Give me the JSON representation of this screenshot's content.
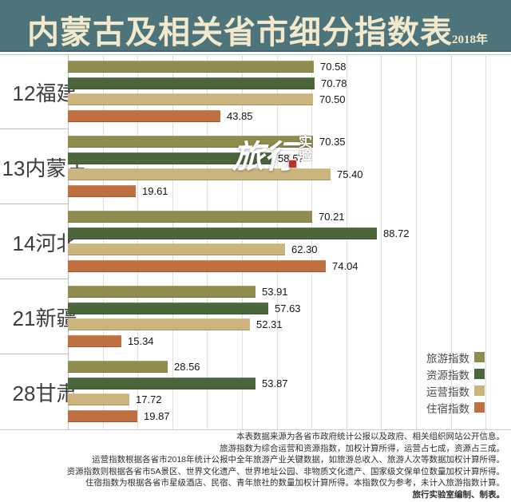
{
  "banner": {
    "title": "内蒙古及相关省市细分指数表",
    "year": "2018年",
    "bg_color": "#4D747B",
    "text_color": "#F2E9CC"
  },
  "chart_data": {
    "type": "bar",
    "orientation": "horizontal",
    "title": "内蒙古及相关省市细分指数表",
    "subtitle": "2018年",
    "categories": [
      "12福建",
      "13内蒙古",
      "14河北",
      "21新疆",
      "28甘肃"
    ],
    "series": [
      {
        "name": "旅游指数",
        "color": "#8F8C4F",
        "values": [
          70.58,
          70.35,
          70.21,
          53.91,
          28.56
        ]
      },
      {
        "name": "资源指数",
        "color": "#4C663C",
        "values": [
          70.78,
          58.57,
          88.72,
          57.63,
          53.87
        ]
      },
      {
        "name": "运营指数",
        "color": "#CBB57D",
        "values": [
          70.5,
          75.4,
          62.3,
          52.31,
          17.72
        ]
      },
      {
        "name": "住宿指数",
        "color": "#C06F40",
        "values": [
          43.85,
          19.61,
          74.04,
          15.34,
          19.87
        ]
      }
    ],
    "value_labels": true,
    "xlim": [
      0,
      120
    ],
    "gridline_step": 10,
    "grid": "vertical",
    "legend_position": "bottom-right"
  },
  "watermark": {
    "text_main": "旅行",
    "text_sub_top": "实",
    "text_sub_bottom": "验",
    "seal_color": "#B5342A"
  },
  "footer": {
    "lines": [
      "本表数据来源为各省市政府统计公报以及政府、相关组织网站公开信息。",
      "旅游指数为综合运营和资源指数，加权计算所得，运营占七成，资源占三成。",
      "运营指数根据各省市2018年统计公报中全年旅游产业关键数据，如旅游总收入、旅游人次等数据加权计算所得。",
      "资源指数则根据各省市5A景区、世界文化遗产、世界地址公园、非物质文化遗产、国家级文保单位数量加权计算所得。",
      "住宿指数为根据各省市星级酒店、民宿、青年旅社的数量加权计算所得。本指数仅为参考，未计入旅游指数计算。",
      "旅行实验室编制、制表。"
    ]
  }
}
